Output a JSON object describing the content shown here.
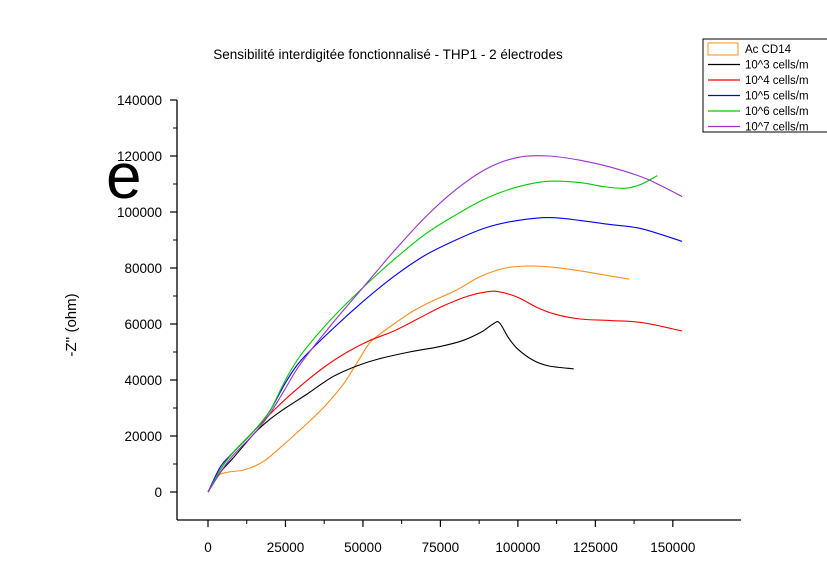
{
  "page_fragment_text": "e",
  "chart_data": {
    "type": "line",
    "title": "Sensibilité interdigitée fonctionnalisé - THP1 - 2 électrodes",
    "xlabel": "",
    "ylabel": "-Z'' (ohm)",
    "xlim": [
      -10000,
      172000
    ],
    "ylim": [
      -10000,
      140000
    ],
    "x_ticks": [
      "0",
      "25000",
      "50000",
      "75000",
      "100000",
      "125000",
      "150000"
    ],
    "x_tick_values": [
      0,
      25000,
      50000,
      75000,
      100000,
      125000,
      150000
    ],
    "y_ticks": [
      "0",
      "20000",
      "40000",
      "60000",
      "80000",
      "100000",
      "120000",
      "140000"
    ],
    "y_tick_values": [
      0,
      20000,
      40000,
      60000,
      80000,
      100000,
      120000,
      140000
    ],
    "grid": false,
    "legend_position": "top-right",
    "series": [
      {
        "name": "Ac CD14",
        "color": "#ff8c1a",
        "legend_style": "box",
        "x": [
          0,
          3000,
          6000,
          12000,
          18000,
          25000,
          32000,
          38000,
          44000,
          48000,
          52000,
          55000,
          60000,
          66000,
          72000,
          80000,
          88000,
          96000,
          104000,
          112000,
          120000,
          128000,
          136000
        ],
        "y": [
          0,
          5500,
          7000,
          8000,
          11000,
          17500,
          24500,
          31000,
          39000,
          46000,
          53000,
          56000,
          60000,
          64500,
          68000,
          72000,
          77000,
          80000,
          80700,
          80200,
          79000,
          77500,
          76000
        ]
      },
      {
        "name": "10^3 cells/m",
        "color": "#000000",
        "legend_style": "line",
        "x": [
          0,
          4000,
          8000,
          15000,
          20000,
          25000,
          32000,
          40000,
          48000,
          55000,
          65000,
          75000,
          82000,
          88000,
          92000,
          94000,
          97000,
          100000,
          105000,
          110000,
          118000
        ],
        "y": [
          0,
          7000,
          12000,
          21000,
          26000,
          30000,
          35000,
          41000,
          45000,
          47500,
          50000,
          52000,
          54000,
          57000,
          60000,
          60500,
          55000,
          51000,
          47000,
          45000,
          44000
        ]
      },
      {
        "name": "10^4 cells/m",
        "color": "#ff0000",
        "legend_style": "line",
        "x": [
          0,
          4000,
          8000,
          15000,
          22000,
          30000,
          38000,
          45000,
          52000,
          60000,
          68000,
          76000,
          84000,
          90000,
          94000,
          100000,
          106000,
          112000,
          120000,
          130000,
          140000,
          153000
        ],
        "y": [
          0,
          8000,
          14000,
          22000,
          30000,
          38000,
          45000,
          50000,
          54000,
          57500,
          62000,
          66500,
          70000,
          71500,
          71500,
          69500,
          66000,
          63500,
          61800,
          61200,
          60500,
          57500
        ]
      },
      {
        "name": "10^5 cells/m",
        "color": "#0000ff",
        "legend_style": "line",
        "x": [
          0,
          4000,
          8000,
          15000,
          20000,
          25000,
          30000,
          40000,
          50000,
          60000,
          70000,
          80000,
          90000,
          100000,
          110000,
          120000,
          130000,
          140000,
          153000
        ],
        "y": [
          0,
          9000,
          14000,
          22000,
          29000,
          39000,
          47000,
          58000,
          68000,
          77000,
          84500,
          90000,
          94500,
          97000,
          98000,
          97000,
          95500,
          94000,
          89500
        ]
      },
      {
        "name": "10^6 cells/m",
        "color": "#00cc00",
        "legend_style": "line",
        "x": [
          0,
          4000,
          8000,
          15000,
          20000,
          25000,
          30000,
          40000,
          50000,
          60000,
          70000,
          80000,
          90000,
          100000,
          110000,
          120000,
          128000,
          135000,
          140000,
          145000
        ],
        "y": [
          0,
          8000,
          14000,
          22000,
          29000,
          40000,
          49000,
          62000,
          73000,
          83000,
          92000,
          99000,
          105000,
          109000,
          111000,
          110500,
          109000,
          108500,
          110000,
          113000
        ]
      },
      {
        "name": "10^7 cells/m",
        "color": "#9933cc",
        "legend_style": "line",
        "x": [
          0,
          4000,
          8000,
          15000,
          20000,
          25000,
          30000,
          40000,
          50000,
          60000,
          70000,
          80000,
          90000,
          100000,
          110000,
          120000,
          130000,
          140000,
          146000,
          153000
        ],
        "y": [
          0,
          7000,
          13000,
          21000,
          28000,
          37000,
          46000,
          60000,
          73000,
          86000,
          98000,
          108000,
          115500,
          119500,
          120000,
          118500,
          116000,
          112500,
          109500,
          105500
        ]
      }
    ]
  }
}
